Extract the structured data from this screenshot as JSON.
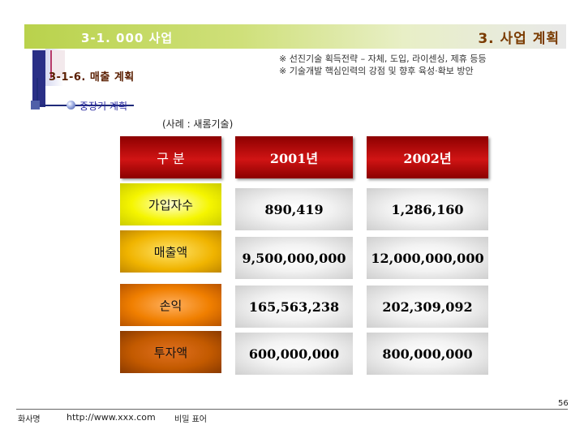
{
  "header": {
    "section_code": "3-1. 000 사업",
    "section_title": "3. 사업 계획"
  },
  "subheader": {
    "title": "3-1-6. 매출 계획",
    "notes": [
      "※ 선진기술 획득전략 – 자체, 도입, 라이센싱, 제휴 등등",
      "※ 기술개발 핵심인력의 강점 및 향후 육성·확보 방안"
    ]
  },
  "bullet": {
    "label": "중장기 계획",
    "example": "(사례 : 새롬기술)"
  },
  "table": {
    "headers": [
      "구 분",
      "2001년",
      "2002년"
    ],
    "rows": [
      {
        "label": "가입자수",
        "values": [
          "890,419",
          "1,286,160"
        ]
      },
      {
        "label": "매출액",
        "values": [
          "9,500,000,000",
          "12,000,000,000"
        ]
      },
      {
        "label": "손익",
        "values": [
          "165,563,238",
          "202,309,092"
        ]
      },
      {
        "label": "투자액",
        "values": [
          "600,000,000",
          "800,000,000"
        ]
      }
    ]
  },
  "footer": {
    "company": "화사명",
    "url": "http://www.xxx.com",
    "grade": "비밀 표어",
    "page": "56"
  },
  "colors": {
    "header_band": "#b9d24c",
    "header_red": "#b30000",
    "accent_navy": "#2a2f86"
  }
}
